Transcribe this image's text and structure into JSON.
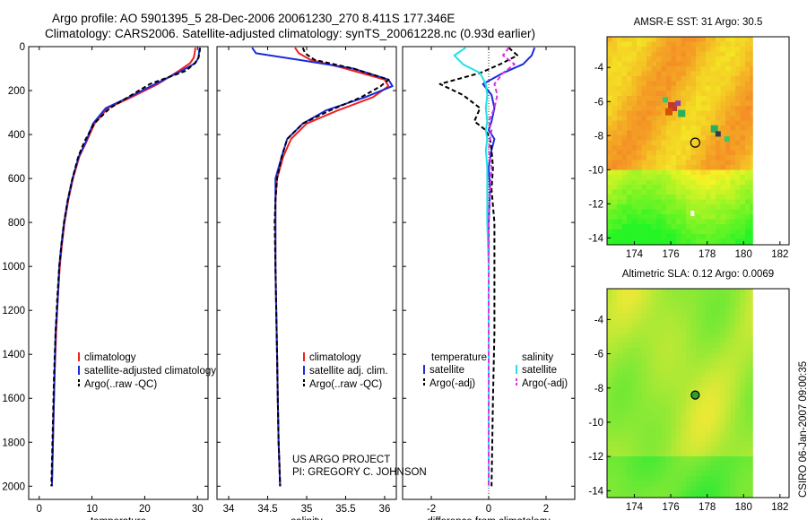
{
  "header": {
    "line1": "Argo profile: AO 5901395_5 28-Dec-2006 20061230_270 8.411S 177.346E",
    "line2": "Climatology: CARS2006. Satellite-adjusted climatology: synTS_20061228.nc (0.93d earlier)"
  },
  "footer": {
    "project": "US ARGO PROJECT",
    "pi": "PI: GREGORY C. JOHNSON",
    "stamp": "CSIRO 06-Jan-2007 09:00:35"
  },
  "colors": {
    "climatology": "#ee2020",
    "satellite": "#1c2bdd",
    "argo": "#000000",
    "satellite_s": "#22e0e8",
    "argo_s": "#e030e0"
  },
  "chart_data": [
    {
      "type": "line",
      "title": "",
      "xlabel": "temperature",
      "ylabel": "",
      "xlim": [
        -2,
        32
      ],
      "ylim": [
        2060,
        0
      ],
      "y_reversed": true,
      "xticks": [
        0,
        10,
        20,
        30
      ],
      "yticks": [
        0,
        200,
        400,
        600,
        800,
        1000,
        1200,
        1400,
        1600,
        1800,
        2000
      ],
      "legend": {
        "location": "middle-left",
        "entries": [
          "climatology",
          "satellite-adjusted climatology",
          "Argo(..raw -QC)"
        ]
      },
      "series": [
        {
          "name": "climatology",
          "color": "#ee2020",
          "dash": "",
          "x": [
            29.6,
            29.5,
            29.3,
            28.6,
            26.5,
            22.5,
            17.5,
            13.0,
            10.5,
            9.0,
            7.6,
            6.4,
            5.5,
            4.8,
            4.3,
            3.9,
            3.5,
            3.2,
            2.9,
            2.7,
            2.5,
            2.4
          ],
          "y": [
            5,
            25,
            50,
            75,
            110,
            170,
            230,
            280,
            350,
            430,
            500,
            600,
            700,
            800,
            900,
            1000,
            1150,
            1300,
            1500,
            1700,
            1900,
            2000
          ]
        },
        {
          "name": "satellite-adjusted climatology",
          "color": "#1c2bdd",
          "dash": "",
          "x": [
            30.4,
            30.3,
            30.2,
            29.6,
            27.0,
            22.0,
            17.0,
            12.6,
            10.2,
            8.9,
            7.5,
            6.3,
            5.4,
            4.7,
            4.2,
            3.8,
            3.5,
            3.1,
            2.9,
            2.7,
            2.5,
            2.4
          ],
          "y": [
            5,
            25,
            50,
            75,
            110,
            170,
            230,
            280,
            350,
            430,
            500,
            600,
            700,
            800,
            900,
            1000,
            1150,
            1300,
            1500,
            1700,
            1900,
            2000
          ]
        },
        {
          "name": "Argo(..raw -QC)",
          "color": "#000000",
          "dash": "5,3",
          "x": [
            30.5,
            30.4,
            30.2,
            29.5,
            27.8,
            21.0,
            16.8,
            13.4,
            10.4,
            8.6,
            7.4,
            6.3,
            5.4,
            4.7,
            4.2,
            3.8,
            3.4,
            3.1,
            2.8,
            2.6,
            2.4,
            2.3
          ],
          "y": [
            5,
            25,
            50,
            75,
            110,
            170,
            230,
            280,
            350,
            430,
            500,
            600,
            700,
            800,
            900,
            1000,
            1150,
            1300,
            1500,
            1700,
            1900,
            2000
          ]
        }
      ]
    },
    {
      "type": "line",
      "title": "",
      "xlabel": "salinity",
      "ylabel": "",
      "xlim": [
        33.85,
        36.15
      ],
      "ylim": [
        2060,
        0
      ],
      "y_reversed": true,
      "xticks": [
        34,
        34.5,
        35,
        35.5,
        36
      ],
      "legend": {
        "location": "middle-right",
        "entries": [
          "climatology",
          "satellite adj. clim.",
          "Argo(..raw -QC)"
        ]
      },
      "series": [
        {
          "name": "climatology",
          "color": "#ee2020",
          "dash": "",
          "x": [
            34.85,
            34.9,
            35.05,
            35.5,
            36.0,
            36.05,
            35.85,
            35.4,
            35.0,
            34.8,
            34.7,
            34.62,
            34.6,
            34.6,
            34.6,
            34.61,
            34.62,
            34.63,
            34.64,
            34.65,
            34.66
          ],
          "y": [
            5,
            30,
            60,
            100,
            150,
            180,
            230,
            290,
            350,
            420,
            500,
            600,
            700,
            800,
            1000,
            1200,
            1400,
            1600,
            1800,
            1900,
            2000
          ]
        },
        {
          "name": "satellite adj. clim.",
          "color": "#1c2bdd",
          "dash": "",
          "x": [
            34.3,
            34.35,
            34.9,
            35.6,
            36.05,
            36.1,
            35.75,
            35.25,
            34.95,
            34.75,
            34.68,
            34.6,
            34.6,
            34.6,
            34.6,
            34.61,
            34.62,
            34.63,
            34.64,
            34.65,
            34.66
          ],
          "y": [
            5,
            30,
            60,
            100,
            150,
            180,
            230,
            290,
            350,
            420,
            500,
            600,
            700,
            800,
            1000,
            1200,
            1400,
            1600,
            1800,
            1900,
            2000
          ]
        },
        {
          "name": "Argo(..raw -QC)",
          "color": "#000000",
          "dash": "5,3",
          "x": [
            34.95,
            34.98,
            35.1,
            35.6,
            36.05,
            35.95,
            35.7,
            35.3,
            34.95,
            34.75,
            34.68,
            34.62,
            34.6,
            34.59,
            34.6,
            34.61,
            34.62,
            34.63,
            34.64,
            34.65,
            34.66
          ],
          "y": [
            5,
            30,
            60,
            100,
            150,
            180,
            230,
            290,
            350,
            420,
            500,
            600,
            700,
            800,
            1000,
            1200,
            1400,
            1600,
            1800,
            1900,
            2000
          ]
        }
      ]
    },
    {
      "type": "line",
      "title": "",
      "xlabel": "difference from climatology",
      "ylabel": "",
      "xlim": [
        -3,
        3
      ],
      "ylim": [
        2060,
        0
      ],
      "y_reversed": true,
      "xticks": [
        -2,
        0,
        2
      ],
      "legend": {
        "location": "bottom",
        "groups": [
          {
            "title": "temperature",
            "entries": [
              "satellite",
              "Argo(-adj)"
            ]
          },
          {
            "title": "salinity",
            "entries": [
              "satellite",
              "Argo(-adj)"
            ]
          }
        ]
      },
      "series": [
        {
          "name": "temperature satellite",
          "color": "#1c2bdd",
          "dash": "",
          "x": [
            1.6,
            1.5,
            1.2,
            0.5,
            -0.2,
            0.1,
            0.2,
            0.1,
            0.0,
            0.2,
            0.1,
            0.0,
            0.05,
            0.0,
            0.0,
            0.0,
            0.0,
            0.0
          ],
          "y": [
            5,
            40,
            80,
            120,
            170,
            220,
            280,
            340,
            380,
            420,
            470,
            550,
            650,
            800,
            1000,
            1300,
            1600,
            2000
          ]
        },
        {
          "name": "temperature Argo(-adj)",
          "color": "#000000",
          "dash": "5,3",
          "x": [
            0.7,
            1.0,
            0.4,
            -0.3,
            -1.7,
            -0.9,
            -0.3,
            -0.5,
            -0.1,
            0.05,
            0.1,
            0.15,
            0.1,
            0.2,
            0.2,
            0.2,
            0.15,
            0.1
          ],
          "y": [
            5,
            40,
            80,
            120,
            170,
            220,
            280,
            340,
            380,
            420,
            470,
            550,
            650,
            800,
            1000,
            1300,
            1600,
            2000
          ]
        },
        {
          "name": "salinity satellite",
          "color": "#22e0e8",
          "dash": "",
          "x": [
            -0.8,
            -1.2,
            -0.9,
            -0.3,
            -0.1,
            -0.05,
            -0.1,
            -0.05,
            -0.1,
            -0.05,
            -0.1,
            -0.05,
            -0.05,
            -0.05,
            0.0,
            0.0,
            0.0,
            0.0
          ],
          "y": [
            5,
            40,
            80,
            120,
            170,
            220,
            280,
            340,
            380,
            420,
            470,
            550,
            650,
            800,
            1000,
            1300,
            1600,
            2000
          ]
        },
        {
          "name": "salinity Argo(-adj)",
          "color": "#e030e0",
          "dash": "5,3",
          "x": [
            0.7,
            0.5,
            0.9,
            0.5,
            0.2,
            0.3,
            0.2,
            0.0,
            0.1,
            0.05,
            0.0,
            0.1,
            0.05,
            0.0,
            0.0,
            0.0,
            0.0,
            0.0
          ],
          "y": [
            5,
            40,
            80,
            120,
            170,
            220,
            280,
            340,
            380,
            420,
            470,
            550,
            650,
            800,
            1000,
            1300,
            1600,
            2000
          ]
        }
      ]
    },
    {
      "type": "heatmap",
      "title": "AMSR-E SST: 31 Argo: 30.5",
      "xlim": [
        172.5,
        182.5
      ],
      "ylim": [
        -14.4,
        -2.2
      ],
      "xticks": [
        174,
        176,
        178,
        180,
        182
      ],
      "yticks": [
        -4,
        -6,
        -8,
        -10,
        -12,
        -14
      ],
      "data_extent_lon": [
        172.5,
        180.5
      ],
      "marker": {
        "lon": 177.346,
        "lat": -8.411,
        "style": "open-circle"
      }
    },
    {
      "type": "heatmap",
      "title": "Altimetric SLA: 0.12 Argo: 0.0069",
      "xlim": [
        172.5,
        182.5
      ],
      "ylim": [
        -14.4,
        -2.2
      ],
      "xticks": [
        174,
        176,
        178,
        180,
        182
      ],
      "yticks": [
        -4,
        -6,
        -8,
        -10,
        -12,
        -14
      ],
      "data_extent_lon": [
        172.5,
        180.5
      ],
      "marker": {
        "lon": 177.346,
        "lat": -8.411,
        "style": "filled-circle"
      }
    }
  ]
}
